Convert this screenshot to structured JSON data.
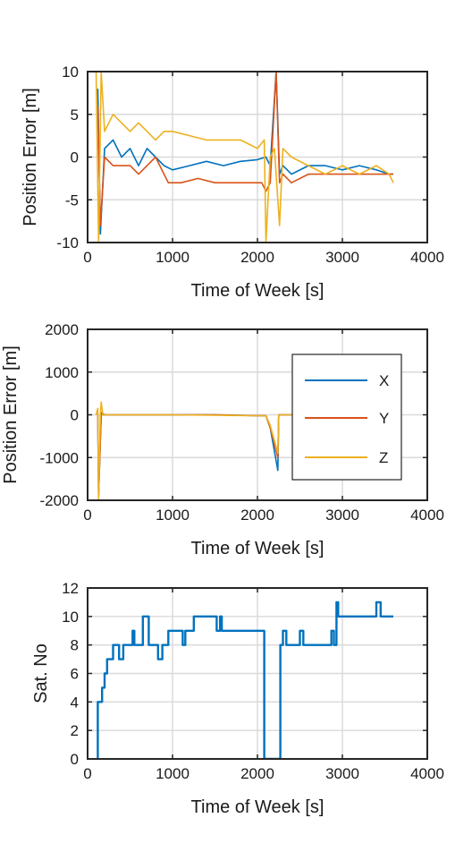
{
  "colors": {
    "X": "#0072BD",
    "Y": "#D95319",
    "Z": "#EDB120",
    "frame": "#262626",
    "grid": "#d9d9d9"
  },
  "chart_data": [
    {
      "type": "line",
      "xlabel": "Time of Week [s]",
      "ylabel": "Position Error [m]",
      "xlim": [
        0,
        4000
      ],
      "ylim": [
        -10,
        10
      ],
      "xticks": [
        0,
        1000,
        2000,
        3000,
        4000
      ],
      "yticks": [
        -10,
        -5,
        0,
        5,
        10
      ],
      "grid": true,
      "series": [
        {
          "color": "#0072BD",
          "x": [
            120,
            150,
            200,
            300,
            400,
            500,
            600,
            700,
            800,
            900,
            1000,
            1200,
            1400,
            1600,
            1800,
            2000,
            2100,
            2150,
            2220,
            2260,
            2300,
            2400,
            2600,
            2800,
            3000,
            3200,
            3400,
            3550,
            3600
          ],
          "y": [
            8,
            -9,
            1,
            2,
            0,
            1,
            -1,
            1,
            0,
            -1,
            -1.5,
            -1,
            -0.5,
            -1,
            -0.5,
            -0.3,
            0,
            -1,
            10,
            -2,
            -1,
            -2,
            -1,
            -1,
            -1.5,
            -1,
            -1.5,
            -2,
            -2
          ]
        },
        {
          "color": "#D95319",
          "x": [
            120,
            150,
            200,
            300,
            400,
            500,
            600,
            700,
            800,
            900,
            950,
            1100,
            1300,
            1500,
            1700,
            1900,
            2050,
            2100,
            2150,
            2220,
            2260,
            2300,
            2400,
            2600,
            2800,
            3000,
            3200,
            3400,
            3550,
            3600
          ],
          "y": [
            6,
            -8,
            0,
            -1,
            -1,
            -1,
            -2,
            -1,
            0,
            -2,
            -3,
            -3,
            -2.5,
            -3,
            -3,
            -3,
            -3,
            -4,
            -3,
            10,
            -3,
            -2,
            -3,
            -2,
            -2,
            -2,
            -2,
            -2,
            -2,
            -2
          ]
        },
        {
          "color": "#EDB120",
          "x": [
            100,
            130,
            160,
            200,
            300,
            400,
            500,
            600,
            700,
            800,
            900,
            1000,
            1200,
            1400,
            1600,
            1800,
            2000,
            2080,
            2100,
            2150,
            2200,
            2260,
            2300,
            2400,
            2600,
            2800,
            3000,
            3200,
            3400,
            3550,
            3600
          ],
          "y": [
            10,
            -10,
            10,
            3,
            5,
            4,
            3,
            4,
            3,
            2,
            3,
            3,
            2.5,
            2,
            2,
            2,
            1,
            2,
            -10,
            0,
            1,
            -8,
            1,
            0,
            -1,
            -2,
            -1,
            -2,
            -1,
            -2,
            -3
          ]
        }
      ]
    },
    {
      "type": "line",
      "xlabel": "Time of Week [s]",
      "ylabel": "Position Error [m]",
      "xlim": [
        0,
        4000
      ],
      "ylim": [
        -2000,
        2000
      ],
      "xticks": [
        0,
        1000,
        2000,
        3000,
        4000
      ],
      "yticks": [
        -2000,
        -1000,
        0,
        1000,
        2000
      ],
      "grid": true,
      "legend": {
        "placement": "right",
        "entries": [
          "X",
          "Y",
          "Z"
        ]
      },
      "series": [
        {
          "name": "X",
          "color": "#0072BD",
          "x": [
            120,
            130,
            160,
            200,
            500,
            1000,
            1500,
            2000,
            2100,
            2150,
            2240,
            2250,
            2300,
            2400,
            2450
          ],
          "y": [
            0,
            -1900,
            50,
            0,
            0,
            0,
            0,
            -20,
            -20,
            -300,
            -1300,
            0,
            0,
            0,
            0
          ]
        },
        {
          "name": "Y",
          "color": "#D95319",
          "x": [
            120,
            130,
            160,
            200,
            500,
            1000,
            1500,
            2000,
            2100,
            2150,
            2240,
            2250,
            2300,
            2400,
            2450
          ],
          "y": [
            0,
            -1900,
            0,
            0,
            0,
            0,
            0,
            -20,
            -20,
            -300,
            -1000,
            0,
            0,
            0,
            0
          ]
        },
        {
          "name": "Z",
          "color": "#EDB120",
          "x": [
            100,
            120,
            130,
            150,
            160,
            180,
            200,
            500,
            1000,
            1500,
            2000,
            2100,
            2150,
            2240,
            2250,
            2300,
            2400,
            2450
          ],
          "y": [
            0,
            150,
            -2000,
            0,
            300,
            -10,
            0,
            0,
            0,
            -10,
            -20,
            -20,
            -250,
            -900,
            0,
            0,
            0,
            0
          ]
        }
      ]
    },
    {
      "type": "line",
      "xlabel": "Time of Week [s]",
      "ylabel": "Sat. No",
      "xlim": [
        0,
        4000
      ],
      "ylim": [
        0,
        12
      ],
      "xticks": [
        0,
        1000,
        2000,
        3000,
        4000
      ],
      "yticks": [
        0,
        2,
        4,
        6,
        8,
        10,
        12
      ],
      "grid": true,
      "series": [
        {
          "color": "#0072BD",
          "x": [
            110,
            120,
            120,
            170,
            170,
            200,
            200,
            230,
            230,
            300,
            300,
            370,
            370,
            420,
            420,
            530,
            530,
            550,
            550,
            650,
            650,
            720,
            720,
            830,
            830,
            880,
            880,
            950,
            950,
            1120,
            1120,
            1150,
            1150,
            1250,
            1250,
            1520,
            1520,
            1560,
            1560,
            1580,
            1580,
            1650,
            1650,
            2080,
            2080,
            2120,
            2120,
            2270,
            2270,
            2300,
            2300,
            2340,
            2340,
            2500,
            2500,
            2540,
            2540,
            2820,
            2820,
            2870,
            2870,
            2900,
            2900,
            2930,
            2930,
            2950,
            2950,
            3400,
            3400,
            3450,
            3450,
            3600
          ],
          "y": [
            0,
            0,
            4,
            4,
            5,
            5,
            6,
            6,
            7,
            7,
            8,
            8,
            7,
            7,
            8,
            8,
            9,
            9,
            8,
            8,
            10,
            10,
            8,
            8,
            7,
            7,
            8,
            8,
            9,
            9,
            8,
            8,
            9,
            9,
            10,
            10,
            9,
            9,
            10,
            10,
            9,
            9,
            9,
            9,
            0,
            0,
            0,
            0,
            8,
            8,
            9,
            9,
            8,
            8,
            9,
            9,
            8,
            8,
            8,
            8,
            9,
            9,
            8,
            8,
            11,
            11,
            10,
            10,
            11,
            11,
            10,
            10
          ]
        }
      ]
    }
  ]
}
